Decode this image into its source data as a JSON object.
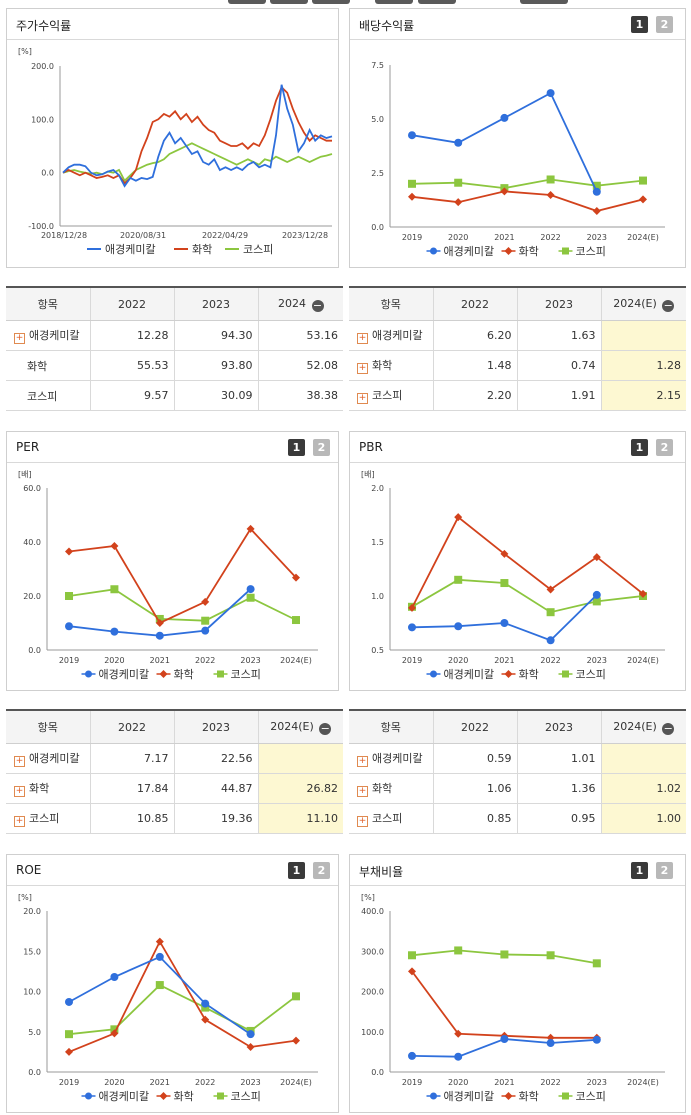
{
  "legend": {
    "s1": "애경케미칼",
    "s2": "화학",
    "s3": "코스피"
  },
  "colors": {
    "s1": "#2f6fdc",
    "s2": "#d2421c",
    "s3": "#8cc63f"
  },
  "buttons": {
    "b1": "1",
    "b2": "2"
  },
  "stock": {
    "title": "주가수익률",
    "chart_data": {
      "type": "line",
      "unit": "[%]",
      "y_ticks": [
        "200.0",
        "100.0",
        "0.0",
        "-100.0"
      ],
      "ylim": [
        -100,
        200
      ],
      "x_ticks": [
        "2018/12/28",
        "2020/08/31",
        "2022/04/29",
        "2023/12/28"
      ],
      "series": [
        {
          "name": "애경케미칼",
          "values": [
            0,
            10,
            15,
            15,
            12,
            0,
            -5,
            -3,
            2,
            5,
            -5,
            -25,
            -10,
            -15,
            -10,
            -12,
            -8,
            30,
            60,
            75,
            55,
            65,
            50,
            35,
            40,
            20,
            15,
            25,
            5,
            10,
            5,
            10,
            5,
            15,
            20,
            10,
            15,
            10,
            70,
            165,
            120,
            90,
            40,
            55,
            80,
            60,
            70,
            65,
            68
          ]
        },
        {
          "name": "화학",
          "values": [
            0,
            5,
            0,
            -5,
            0,
            -5,
            -10,
            -8,
            -5,
            -10,
            -5,
            -20,
            -10,
            5,
            40,
            65,
            95,
            100,
            110,
            105,
            115,
            100,
            110,
            95,
            105,
            90,
            80,
            75,
            60,
            55,
            50,
            50,
            55,
            45,
            55,
            50,
            70,
            100,
            135,
            160,
            150,
            120,
            95,
            75,
            60,
            70,
            65,
            60,
            60
          ]
        },
        {
          "name": "코스피",
          "values": [
            0,
            3,
            5,
            2,
            0,
            -2,
            0,
            -3,
            2,
            0,
            5,
            -15,
            -5,
            5,
            10,
            15,
            18,
            20,
            25,
            35,
            40,
            45,
            50,
            55,
            50,
            45,
            40,
            35,
            30,
            25,
            20,
            15,
            20,
            25,
            20,
            15,
            25,
            22,
            30,
            25,
            20,
            25,
            30,
            25,
            20,
            25,
            30,
            32,
            35
          ]
        }
      ]
    }
  },
  "dividend": {
    "title": "배당수익률",
    "chart_data": {
      "type": "line",
      "y_ticks": [
        "7.5",
        "5.0",
        "2.5",
        "0.0"
      ],
      "ylim": [
        0,
        7.5
      ],
      "categories": [
        "2019",
        "2020",
        "2021",
        "2022",
        "2023",
        "2024(E)"
      ],
      "series": [
        {
          "name": "애경케미칼",
          "values": [
            4.25,
            3.9,
            5.05,
            6.2,
            1.63,
            null
          ]
        },
        {
          "name": "화학",
          "values": [
            1.4,
            1.15,
            1.65,
            1.48,
            0.74,
            1.28
          ]
        },
        {
          "name": "코스피",
          "values": [
            2.0,
            2.05,
            1.8,
            2.2,
            1.91,
            2.15
          ]
        }
      ]
    }
  },
  "table1": {
    "header": [
      "항목",
      "2022",
      "2023",
      "2024"
    ],
    "rows": [
      {
        "name": "애경케미칼",
        "vals": [
          "12.28",
          "94.30",
          "53.16"
        ]
      },
      {
        "name": "화학",
        "vals": [
          "55.53",
          "93.80",
          "52.08"
        ]
      },
      {
        "name": "코스피",
        "vals": [
          "9.57",
          "30.09",
          "38.38"
        ]
      }
    ]
  },
  "table2": {
    "header": [
      "항목",
      "2022",
      "2023",
      "2024(E)"
    ],
    "rows": [
      {
        "name": "애경케미칼",
        "vals": [
          "6.20",
          "1.63",
          ""
        ]
      },
      {
        "name": "화학",
        "vals": [
          "1.48",
          "0.74",
          "1.28"
        ]
      },
      {
        "name": "코스피",
        "vals": [
          "2.20",
          "1.91",
          "2.15"
        ]
      }
    ]
  },
  "per": {
    "title": "PER",
    "chart_data": {
      "type": "line",
      "unit": "[배]",
      "y_ticks": [
        "60.0",
        "40.0",
        "20.0",
        "0.0"
      ],
      "ylim": [
        0,
        60
      ],
      "categories": [
        "2019",
        "2020",
        "2021",
        "2022",
        "2023",
        "2024(E)"
      ],
      "series": [
        {
          "name": "애경케미칼",
          "values": [
            8.8,
            6.8,
            5.3,
            7.17,
            22.56,
            null
          ]
        },
        {
          "name": "화학",
          "values": [
            36.5,
            38.5,
            10.0,
            17.84,
            44.87,
            26.82
          ]
        },
        {
          "name": "코스피",
          "values": [
            20.0,
            22.5,
            11.5,
            10.85,
            19.36,
            11.1
          ]
        }
      ]
    }
  },
  "pbr": {
    "title": "PBR",
    "chart_data": {
      "type": "line",
      "unit": "[배]",
      "y_ticks": [
        "2.0",
        "1.5",
        "1.0",
        "0.5"
      ],
      "ylim": [
        0.5,
        2.0
      ],
      "categories": [
        "2019",
        "2020",
        "2021",
        "2022",
        "2023",
        "2024(E)"
      ],
      "series": [
        {
          "name": "애경케미칼",
          "values": [
            0.71,
            0.72,
            0.75,
            0.59,
            1.01,
            null
          ]
        },
        {
          "name": "화학",
          "values": [
            0.89,
            1.73,
            1.39,
            1.06,
            1.36,
            1.02
          ]
        },
        {
          "name": "코스피",
          "values": [
            0.9,
            1.15,
            1.12,
            0.85,
            0.95,
            1.0
          ]
        }
      ]
    }
  },
  "table3": {
    "header": [
      "항목",
      "2022",
      "2023",
      "2024(E)"
    ],
    "rows": [
      {
        "name": "애경케미칼",
        "vals": [
          "7.17",
          "22.56",
          ""
        ]
      },
      {
        "name": "화학",
        "vals": [
          "17.84",
          "44.87",
          "26.82"
        ]
      },
      {
        "name": "코스피",
        "vals": [
          "10.85",
          "19.36",
          "11.10"
        ]
      }
    ]
  },
  "table4": {
    "header": [
      "항목",
      "2022",
      "2023",
      "2024(E)"
    ],
    "rows": [
      {
        "name": "애경케미칼",
        "vals": [
          "0.59",
          "1.01",
          ""
        ]
      },
      {
        "name": "화학",
        "vals": [
          "1.06",
          "1.36",
          "1.02"
        ]
      },
      {
        "name": "코스피",
        "vals": [
          "0.85",
          "0.95",
          "1.00"
        ]
      }
    ]
  },
  "roe": {
    "title": "ROE",
    "chart_data": {
      "type": "line",
      "unit": "[%]",
      "y_ticks": [
        "20.0",
        "15.0",
        "10.0",
        "5.0",
        "0.0"
      ],
      "ylim": [
        0,
        20
      ],
      "categories": [
        "2019",
        "2020",
        "2021",
        "2022",
        "2023",
        "2024(E)"
      ],
      "series": [
        {
          "name": "애경케미칼",
          "values": [
            8.7,
            11.8,
            14.3,
            8.5,
            4.7,
            null
          ]
        },
        {
          "name": "화학",
          "values": [
            2.5,
            4.8,
            16.2,
            6.5,
            3.1,
            3.9
          ]
        },
        {
          "name": "코스피",
          "values": [
            4.7,
            5.3,
            10.8,
            8.0,
            5.1,
            9.4
          ]
        }
      ]
    }
  },
  "debt": {
    "title": "부채비율",
    "chart_data": {
      "type": "line",
      "unit": "[%]",
      "y_ticks": [
        "400.0",
        "300.0",
        "200.0",
        "100.0",
        "0.0"
      ],
      "ylim": [
        0,
        400
      ],
      "categories": [
        "2019",
        "2020",
        "2021",
        "2022",
        "2023",
        "2024(E)"
      ],
      "series": [
        {
          "name": "애경케미칼",
          "values": [
            40,
            38,
            82,
            72,
            80,
            null
          ]
        },
        {
          "name": "화학",
          "values": [
            250,
            95,
            90,
            85,
            85,
            null
          ]
        },
        {
          "name": "코스피",
          "values": [
            290,
            302,
            292,
            290,
            270,
            null
          ]
        }
      ]
    }
  }
}
